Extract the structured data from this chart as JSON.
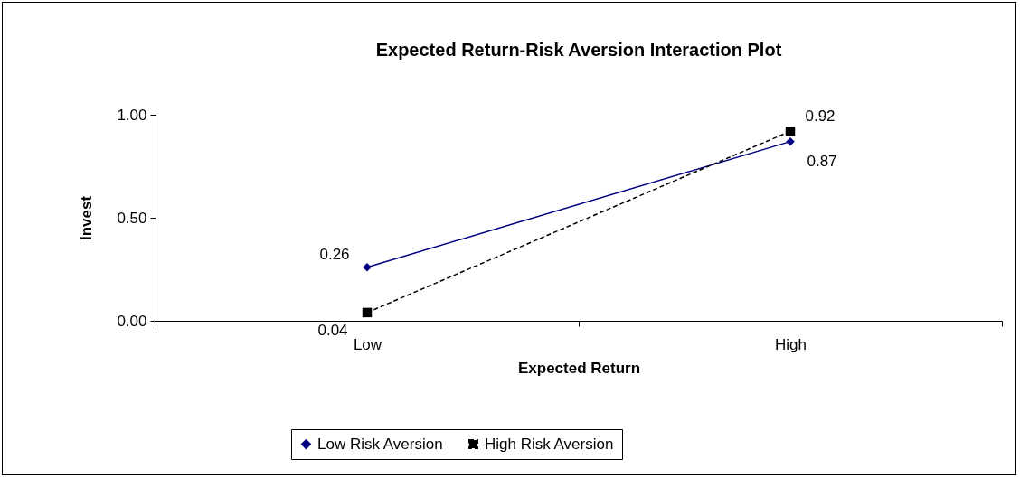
{
  "chart_data": {
    "type": "line",
    "title": "Expected Return-Risk Aversion Interaction Plot",
    "xlabel": "Expected Return",
    "ylabel": "Invest",
    "categories": [
      "Low",
      "High"
    ],
    "series": [
      {
        "name": "Low Risk Aversion",
        "color": "#000080",
        "values": [
          0.26,
          0.87
        ],
        "marker": "diamond",
        "line_style": "solid"
      },
      {
        "name": "High Risk Aversion",
        "color": "#000000",
        "values": [
          0.04,
          0.92
        ],
        "marker": "square",
        "line_style": "dashed"
      }
    ],
    "ylim": [
      0,
      1
    ],
    "yticks": [
      {
        "value": 0,
        "label": "0.00"
      },
      {
        "value": 0.5,
        "label": "0.50"
      },
      {
        "value": 1,
        "label": "1.00"
      }
    ],
    "grid": false,
    "legend": "bottom",
    "data_labels": true
  }
}
